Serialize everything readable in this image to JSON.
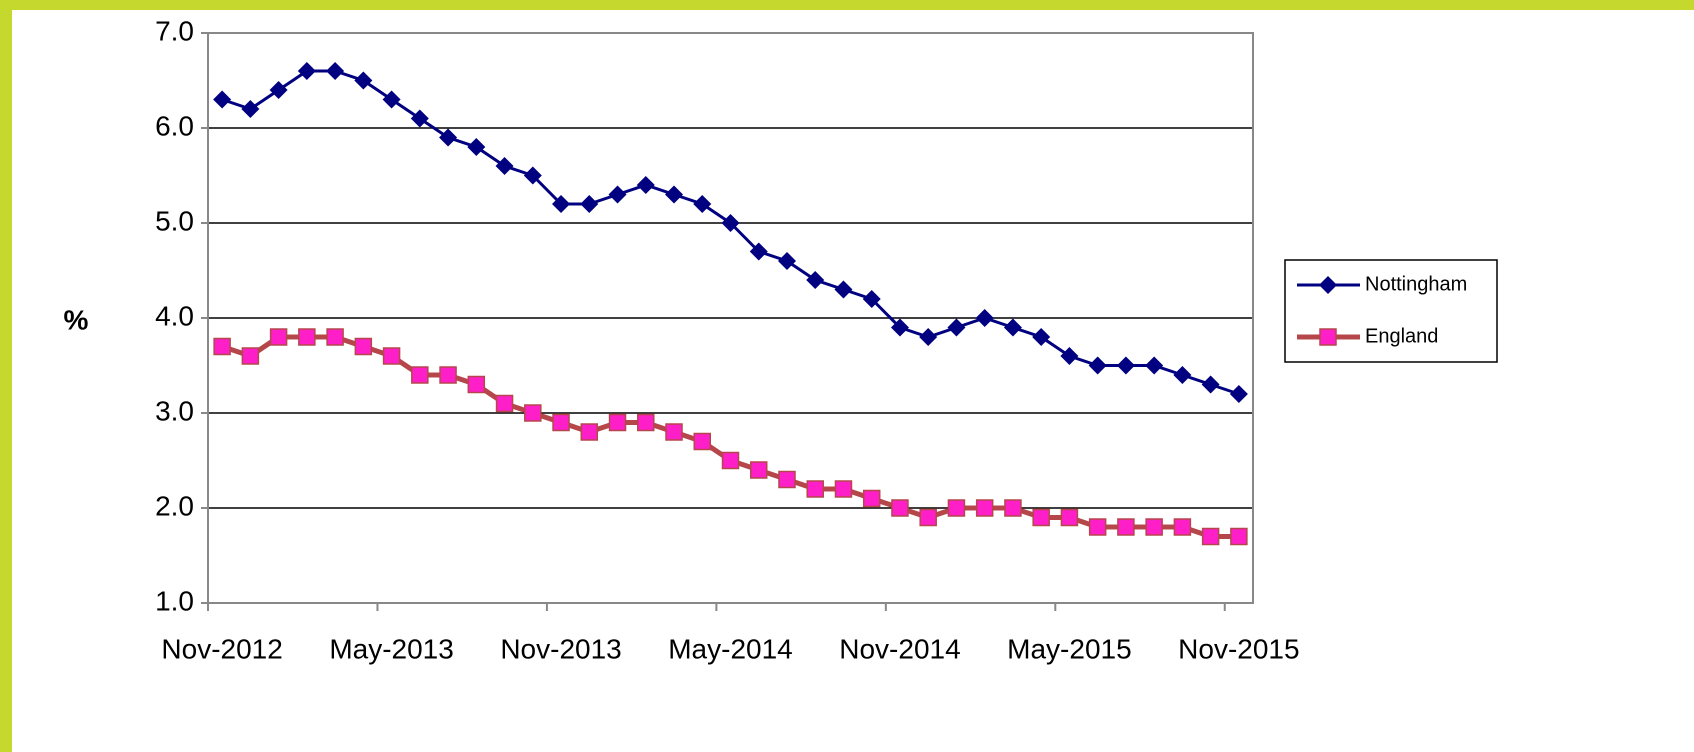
{
  "chart_data": {
    "type": "line",
    "y_label": "%",
    "categories": [
      "Nov-2012",
      null,
      null,
      null,
      null,
      null,
      "May-2013",
      null,
      null,
      null,
      null,
      null,
      "Nov-2013",
      null,
      null,
      null,
      null,
      null,
      "May-2014",
      null,
      null,
      null,
      null,
      null,
      "Nov-2014",
      null,
      null,
      null,
      null,
      null,
      "May-2015",
      null,
      null,
      null,
      null,
      null,
      "Nov-2015"
    ],
    "series": [
      {
        "name": "Nottingham",
        "color": "#000080",
        "marker": "diamond",
        "marker_color": "#000080",
        "values": [
          6.3,
          6.2,
          6.4,
          6.6,
          6.6,
          6.5,
          6.3,
          6.1,
          5.9,
          5.8,
          5.6,
          5.5,
          5.2,
          5.2,
          5.3,
          5.4,
          5.3,
          5.2,
          5.0,
          4.7,
          4.6,
          4.4,
          4.3,
          4.2,
          3.9,
          3.8,
          3.9,
          4.0,
          3.9,
          3.8,
          3.6,
          3.5,
          3.5,
          3.5,
          3.4,
          3.3,
          3.2
        ]
      },
      {
        "name": "England",
        "color": "#b5474b",
        "marker": "square",
        "marker_color": "#ff1fc8",
        "values": [
          3.7,
          3.6,
          3.8,
          3.8,
          3.8,
          3.7,
          3.6,
          3.4,
          3.4,
          3.3,
          3.1,
          3.0,
          2.9,
          2.8,
          2.9,
          2.9,
          2.8,
          2.7,
          2.5,
          2.4,
          2.3,
          2.2,
          2.2,
          2.1,
          2.0,
          1.9,
          2.0,
          2.0,
          2.0,
          1.9,
          1.9,
          1.8,
          1.8,
          1.8,
          1.8,
          1.7,
          1.7
        ]
      }
    ],
    "ylim": [
      1,
      7
    ],
    "yticks": [
      {
        "value": 1,
        "label": "1.0"
      },
      {
        "value": 2,
        "label": "2.0"
      },
      {
        "value": 3,
        "label": "3.0"
      },
      {
        "value": 4,
        "label": "4.0"
      },
      {
        "value": 5,
        "label": "5.0"
      },
      {
        "value": 6,
        "label": "6.0"
      },
      {
        "value": 7,
        "label": "7.0"
      }
    ],
    "grid": true,
    "legend": "right"
  }
}
